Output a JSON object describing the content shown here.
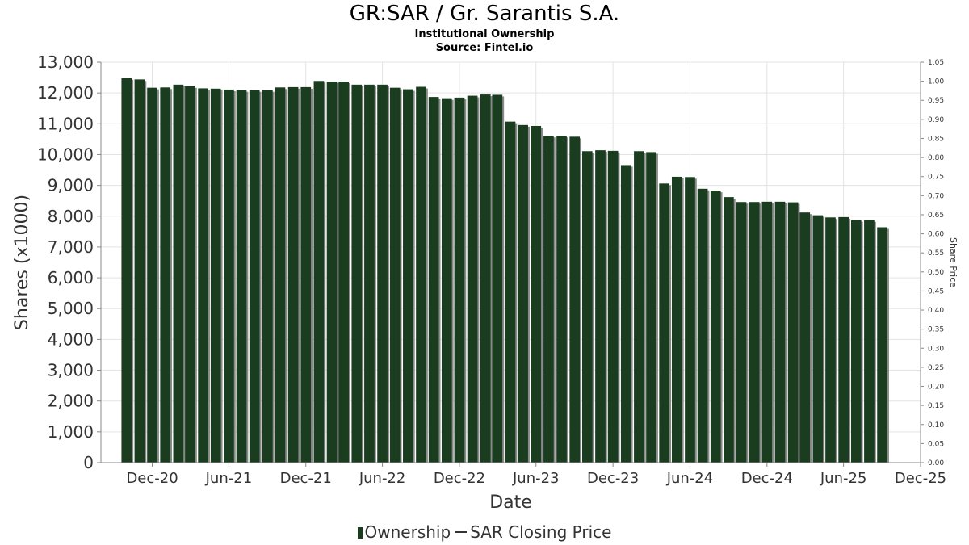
{
  "header": {
    "title": "GR:SAR / Gr. Sarantis S.A.",
    "subtitle": "Institutional Ownership",
    "source": "Source: Fintel.io"
  },
  "legend": {
    "ownership": "Ownership",
    "price": "SAR Closing Price"
  },
  "colors": {
    "bar": "#1a3d20",
    "bar_shadow": "#8a8a8a",
    "grid": "#e3e3e3"
  },
  "chart_data": {
    "type": "bar",
    "xlabel": "Date",
    "ylabel": "Shares (x1000)",
    "y2label": "Share Price",
    "ylim": [
      0,
      13000
    ],
    "y2lim": [
      0,
      1.05
    ],
    "xlim": [
      "2020-08-01",
      "2025-12-01"
    ],
    "grid": true,
    "legend_position": "bottom",
    "yticks": [
      "0",
      "1,000",
      "2,000",
      "3,000",
      "4,000",
      "5,000",
      "6,000",
      "7,000",
      "8,000",
      "9,000",
      "10,000",
      "11,000",
      "12,000",
      "13,000"
    ],
    "y2ticks": [
      "0.00",
      "0.05",
      "0.10",
      "0.15",
      "0.20",
      "0.25",
      "0.30",
      "0.35",
      "0.40",
      "0.45",
      "0.50",
      "0.55",
      "0.60",
      "0.65",
      "0.70",
      "0.75",
      "0.80",
      "0.85",
      "0.90",
      "0.95",
      "1.00",
      "1.05"
    ],
    "xticks": [
      {
        "label": "Dec-20",
        "date": "2020-12-01"
      },
      {
        "label": "Jun-21",
        "date": "2021-06-01"
      },
      {
        "label": "Dec-21",
        "date": "2021-12-01"
      },
      {
        "label": "Jun-22",
        "date": "2022-06-01"
      },
      {
        "label": "Dec-22",
        "date": "2022-12-01"
      },
      {
        "label": "Jun-23",
        "date": "2023-06-01"
      },
      {
        "label": "Dec-23",
        "date": "2023-12-01"
      },
      {
        "label": "Jun-24",
        "date": "2024-06-01"
      },
      {
        "label": "Dec-24",
        "date": "2024-12-01"
      },
      {
        "label": "Jun-25",
        "date": "2025-06-01"
      },
      {
        "label": "Dec-25",
        "date": "2025-12-01"
      }
    ],
    "series": [
      {
        "name": "Ownership",
        "start": "2020-10-01",
        "interval_months": 1,
        "values": [
          12480,
          12440,
          12170,
          12180,
          12270,
          12220,
          12150,
          12140,
          12110,
          12090,
          12090,
          12090,
          12180,
          12190,
          12190,
          12390,
          12370,
          12370,
          12270,
          12270,
          12270,
          12170,
          12120,
          12200,
          11870,
          11830,
          11850,
          11910,
          11950,
          11940,
          11070,
          10960,
          10930,
          10610,
          10610,
          10580,
          10110,
          10140,
          10120,
          9660,
          10110,
          10080,
          9060,
          9280,
          9270,
          8890,
          8830,
          8620,
          8460,
          8460,
          8470,
          8470,
          8450,
          8120,
          8030,
          7960,
          7970,
          7870,
          7870,
          7640
        ]
      }
    ]
  }
}
